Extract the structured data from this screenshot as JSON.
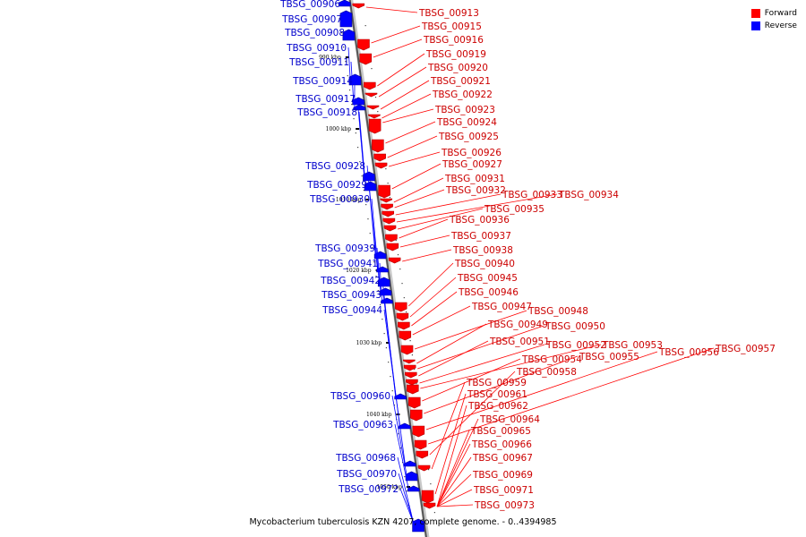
{
  "legend": {
    "forward_label": "Forward",
    "reverse_label": "Reverse",
    "forward_color": "#ff0000",
    "reverse_color": "#0000ff"
  },
  "caption": "Mycobacterium tuberculosis KZN 4207, complete genome. - 0..4394985",
  "ticks": [
    "990 kbp",
    "1000 kbp",
    "1010 kbp",
    "1020 kbp",
    "1030 kbp",
    "1040 kbp",
    "1050 kbp"
  ],
  "reverse_genes": [
    "TBSG_00906",
    "TBSG_00907",
    "TBSG_00908",
    "TBSG_00910",
    "TBSG_00911",
    "TBSG_00914",
    "TBSG_00917",
    "TBSG_00918",
    "TBSG_00928",
    "TBSG_00929",
    "TBSG_00930",
    "TBSG_00939",
    "TBSG_00941",
    "TBSG_00942",
    "TBSG_00943",
    "TBSG_00944",
    "TBSG_00960",
    "TBSG_00963",
    "TBSG_00968",
    "TBSG_00970",
    "TBSG_00972"
  ],
  "forward_genes": [
    "TBSG_00913",
    "TBSG_00915",
    "TBSG_00916",
    "TBSG_00919",
    "TBSG_00920",
    "TBSG_00921",
    "TBSG_00922",
    "TBSG_00923",
    "TBSG_00924",
    "TBSG_00925",
    "TBSG_00926",
    "TBSG_00927",
    "TBSG_00931",
    "TBSG_00932",
    "TBSG_00933",
    "TBSG_00934",
    "TBSG_00935",
    "TBSG_00936",
    "TBSG_00937",
    "TBSG_00938",
    "TBSG_00940",
    "TBSG_00945",
    "TBSG_00946",
    "TBSG_00947",
    "TBSG_00948",
    "TBSG_00949",
    "TBSG_00950",
    "TBSG_00951",
    "TBSG_00952",
    "TBSG_00953",
    "TBSG_00954",
    "TBSG_00955",
    "TBSG_00956",
    "TBSG_00957",
    "TBSG_00958",
    "TBSG_00959",
    "TBSG_00961",
    "TBSG_00962",
    "TBSG_00964",
    "TBSG_00965",
    "TBSG_00966",
    "TBSG_00967",
    "TBSG_00969",
    "TBSG_00971",
    "TBSG_00973"
  ]
}
